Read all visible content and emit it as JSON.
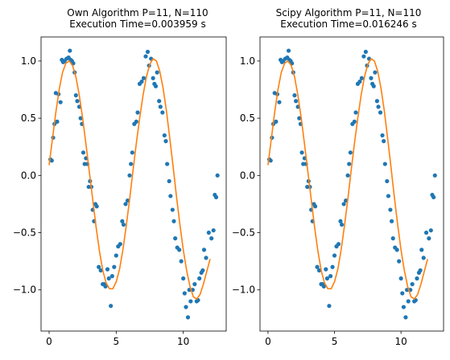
{
  "panels": [
    {
      "title_line1": "Own Algorithm P=11, N=110",
      "title_line2": "Execution Time=0.003959 s"
    },
    {
      "title_line1": "Scipy Algorithm P=11, N=110",
      "title_line2": "Execution Time=0.016246 s"
    }
  ],
  "chart_data": [
    {
      "type": "scatter",
      "title": "Own Algorithm P=11, N=110\nExecution Time=0.003959 s",
      "xlabel": "",
      "ylabel": "",
      "xlim": [
        -0.6,
        13.2
      ],
      "ylim": [
        -1.36,
        1.21
      ],
      "xticks": [
        0,
        5,
        10
      ],
      "yticks": [
        -1.0,
        -0.5,
        0.0,
        0.5,
        1.0
      ],
      "grid": false,
      "colors": {
        "points": "#1f77b4",
        "fit": "#ff7f0e"
      },
      "series": [
        {
          "kind": "points",
          "x": [
            0.1,
            0.2,
            0.3,
            0.4,
            0.5,
            0.6,
            0.7,
            0.85,
            0.95,
            1.05,
            1.15,
            1.3,
            1.45,
            1.55,
            1.6,
            1.7,
            1.8,
            1.9,
            2.0,
            2.1,
            2.25,
            2.35,
            2.45,
            2.55,
            2.65,
            2.75,
            2.85,
            2.95,
            3.05,
            3.15,
            3.25,
            3.35,
            3.45,
            3.55,
            3.7,
            3.85,
            4.0,
            4.1,
            4.2,
            4.35,
            4.45,
            4.6,
            4.7,
            4.85,
            5.0,
            5.15,
            5.3,
            5.45,
            5.55,
            5.7,
            5.85,
            6.0,
            6.1,
            6.2,
            6.35,
            6.5,
            6.6,
            6.75,
            6.9,
            7.05,
            7.2,
            7.35,
            7.45,
            7.6,
            7.75,
            7.85,
            7.95,
            8.05,
            8.2,
            8.3,
            8.45,
            8.6,
            8.7,
            8.8,
            8.95,
            9.05,
            9.2,
            9.3,
            9.4,
            9.55,
            9.7,
            9.85,
            10.0,
            10.1,
            10.2,
            10.35,
            10.45,
            10.55,
            10.7,
            10.85,
            11.0,
            11.1,
            11.2,
            11.35,
            11.45,
            11.55,
            11.7,
            11.9,
            12.1,
            12.25,
            12.35,
            12.45,
            12.55
          ],
          "y": [
            0.14,
            0.13,
            0.33,
            0.45,
            0.72,
            0.47,
            0.71,
            0.64,
            1.01,
            0.99,
            1.0,
            1.02,
            1.03,
            1.09,
            1.01,
            1.0,
            0.98,
            0.9,
            0.7,
            0.65,
            0.6,
            0.5,
            0.45,
            0.2,
            0.1,
            0.15,
            0.1,
            -0.1,
            -0.05,
            -0.1,
            -0.3,
            -0.4,
            -0.25,
            -0.27,
            -0.8,
            -0.83,
            -0.95,
            -0.95,
            -0.97,
            -0.82,
            -0.9,
            -1.14,
            -0.88,
            -0.8,
            -0.7,
            -0.62,
            -0.6,
            -0.4,
            -0.43,
            -0.25,
            -0.22,
            0.0,
            0.1,
            0.2,
            0.45,
            0.47,
            0.55,
            0.8,
            0.82,
            0.85,
            1.04,
            1.08,
            0.96,
            1.02,
            0.85,
            0.8,
            0.78,
            0.9,
            0.65,
            0.6,
            0.55,
            0.35,
            0.3,
            0.1,
            -0.05,
            -0.18,
            -0.3,
            -0.4,
            -0.55,
            -0.63,
            -0.65,
            -0.75,
            -0.9,
            -1.03,
            -1.15,
            -1.24,
            -1.0,
            -1.1,
            -1.0,
            -0.95,
            -1.1,
            -1.09,
            -0.9,
            -0.85,
            -0.83,
            -0.65,
            -0.72,
            -0.5,
            -0.55,
            -0.48,
            -0.17,
            -0.19,
            0.0
          ]
        },
        {
          "kind": "line",
          "x": [
            0,
            0.25,
            0.5,
            0.75,
            1.0,
            1.25,
            1.5,
            1.75,
            2.0,
            2.25,
            2.5,
            2.75,
            3.0,
            3.25,
            3.5,
            3.75,
            4.0,
            4.25,
            4.5,
            4.75,
            5.0,
            5.25,
            5.5,
            5.75,
            6.0,
            6.25,
            6.5,
            6.75,
            7.0,
            7.25,
            7.5,
            7.75,
            8.0,
            8.25,
            8.5,
            8.75,
            9.0,
            9.25,
            9.5,
            9.75,
            10.0,
            10.25,
            10.5,
            10.75,
            11.0,
            11.25,
            11.5,
            11.75,
            12.0
          ],
          "y": [
            0.09,
            0.32,
            0.55,
            0.75,
            0.9,
            0.98,
            1.0,
            0.96,
            0.86,
            0.7,
            0.5,
            0.27,
            0.03,
            -0.21,
            -0.45,
            -0.66,
            -0.83,
            -0.94,
            -0.99,
            -0.99,
            -0.93,
            -0.82,
            -0.65,
            -0.44,
            -0.21,
            0.04,
            0.28,
            0.5,
            0.7,
            0.86,
            0.97,
            1.02,
            1.0,
            0.91,
            0.76,
            0.56,
            0.32,
            0.07,
            -0.19,
            -0.43,
            -0.65,
            -0.83,
            -0.97,
            -1.06,
            -1.08,
            -1.04,
            -0.95,
            -0.84,
            -0.73
          ]
        }
      ]
    },
    {
      "type": "scatter",
      "title": "Scipy Algorithm P=11, N=110\nExecution Time=0.016246 s",
      "xlabel": "",
      "ylabel": "",
      "xlim": [
        -0.6,
        13.2
      ],
      "ylim": [
        -1.36,
        1.21
      ],
      "xticks": [
        0,
        5,
        10
      ],
      "yticks": [
        -1.0,
        -0.5,
        0.0,
        0.5,
        1.0
      ],
      "grid": false,
      "colors": {
        "points": "#1f77b4",
        "fit": "#ff7f0e"
      },
      "series": [
        {
          "kind": "points",
          "x": [
            0.1,
            0.2,
            0.3,
            0.4,
            0.5,
            0.6,
            0.7,
            0.85,
            0.95,
            1.05,
            1.15,
            1.3,
            1.45,
            1.55,
            1.6,
            1.7,
            1.8,
            1.9,
            2.0,
            2.1,
            2.25,
            2.35,
            2.45,
            2.55,
            2.65,
            2.75,
            2.85,
            2.95,
            3.05,
            3.15,
            3.25,
            3.35,
            3.45,
            3.55,
            3.7,
            3.85,
            4.0,
            4.1,
            4.2,
            4.35,
            4.45,
            4.6,
            4.7,
            4.85,
            5.0,
            5.15,
            5.3,
            5.45,
            5.55,
            5.7,
            5.85,
            6.0,
            6.1,
            6.2,
            6.35,
            6.5,
            6.6,
            6.75,
            6.9,
            7.05,
            7.2,
            7.35,
            7.45,
            7.6,
            7.75,
            7.85,
            7.95,
            8.05,
            8.2,
            8.3,
            8.45,
            8.6,
            8.7,
            8.8,
            8.95,
            9.05,
            9.2,
            9.3,
            9.4,
            9.55,
            9.7,
            9.85,
            10.0,
            10.1,
            10.2,
            10.35,
            10.45,
            10.55,
            10.7,
            10.85,
            11.0,
            11.1,
            11.2,
            11.35,
            11.45,
            11.55,
            11.7,
            11.9,
            12.1,
            12.25,
            12.35,
            12.45,
            12.55
          ],
          "y": [
            0.14,
            0.13,
            0.33,
            0.45,
            0.72,
            0.47,
            0.71,
            0.64,
            1.01,
            0.99,
            1.0,
            1.02,
            1.03,
            1.09,
            1.01,
            1.0,
            0.98,
            0.9,
            0.7,
            0.65,
            0.6,
            0.5,
            0.45,
            0.2,
            0.1,
            0.15,
            0.1,
            -0.1,
            -0.05,
            -0.1,
            -0.3,
            -0.4,
            -0.25,
            -0.27,
            -0.8,
            -0.83,
            -0.95,
            -0.95,
            -0.97,
            -0.82,
            -0.9,
            -1.14,
            -0.88,
            -0.8,
            -0.7,
            -0.62,
            -0.6,
            -0.4,
            -0.43,
            -0.25,
            -0.22,
            0.0,
            0.1,
            0.2,
            0.45,
            0.47,
            0.55,
            0.8,
            0.82,
            0.85,
            1.04,
            1.08,
            0.96,
            1.02,
            0.85,
            0.8,
            0.78,
            0.9,
            0.65,
            0.6,
            0.55,
            0.35,
            0.3,
            0.1,
            -0.05,
            -0.18,
            -0.3,
            -0.4,
            -0.55,
            -0.63,
            -0.65,
            -0.75,
            -0.9,
            -1.03,
            -1.15,
            -1.24,
            -1.0,
            -1.1,
            -1.0,
            -0.95,
            -1.1,
            -1.09,
            -0.9,
            -0.85,
            -0.83,
            -0.65,
            -0.72,
            -0.5,
            -0.55,
            -0.48,
            -0.17,
            -0.19,
            0.0
          ]
        },
        {
          "kind": "line",
          "x": [
            0,
            0.25,
            0.5,
            0.75,
            1.0,
            1.25,
            1.5,
            1.75,
            2.0,
            2.25,
            2.5,
            2.75,
            3.0,
            3.25,
            3.5,
            3.75,
            4.0,
            4.25,
            4.5,
            4.75,
            5.0,
            5.25,
            5.5,
            5.75,
            6.0,
            6.25,
            6.5,
            6.75,
            7.0,
            7.25,
            7.5,
            7.75,
            8.0,
            8.25,
            8.5,
            8.75,
            9.0,
            9.25,
            9.5,
            9.75,
            10.0,
            10.25,
            10.5,
            10.75,
            11.0,
            11.25,
            11.5,
            11.75,
            12.0
          ],
          "y": [
            0.09,
            0.32,
            0.55,
            0.75,
            0.9,
            0.98,
            1.0,
            0.96,
            0.86,
            0.7,
            0.5,
            0.27,
            0.03,
            -0.21,
            -0.45,
            -0.66,
            -0.83,
            -0.94,
            -0.99,
            -0.99,
            -0.93,
            -0.82,
            -0.65,
            -0.44,
            -0.21,
            0.04,
            0.28,
            0.5,
            0.7,
            0.86,
            0.97,
            1.02,
            1.0,
            0.91,
            0.76,
            0.56,
            0.32,
            0.07,
            -0.19,
            -0.43,
            -0.65,
            -0.83,
            -0.97,
            -1.06,
            -1.08,
            -1.04,
            -0.95,
            -0.84,
            -0.73
          ]
        }
      ]
    }
  ]
}
